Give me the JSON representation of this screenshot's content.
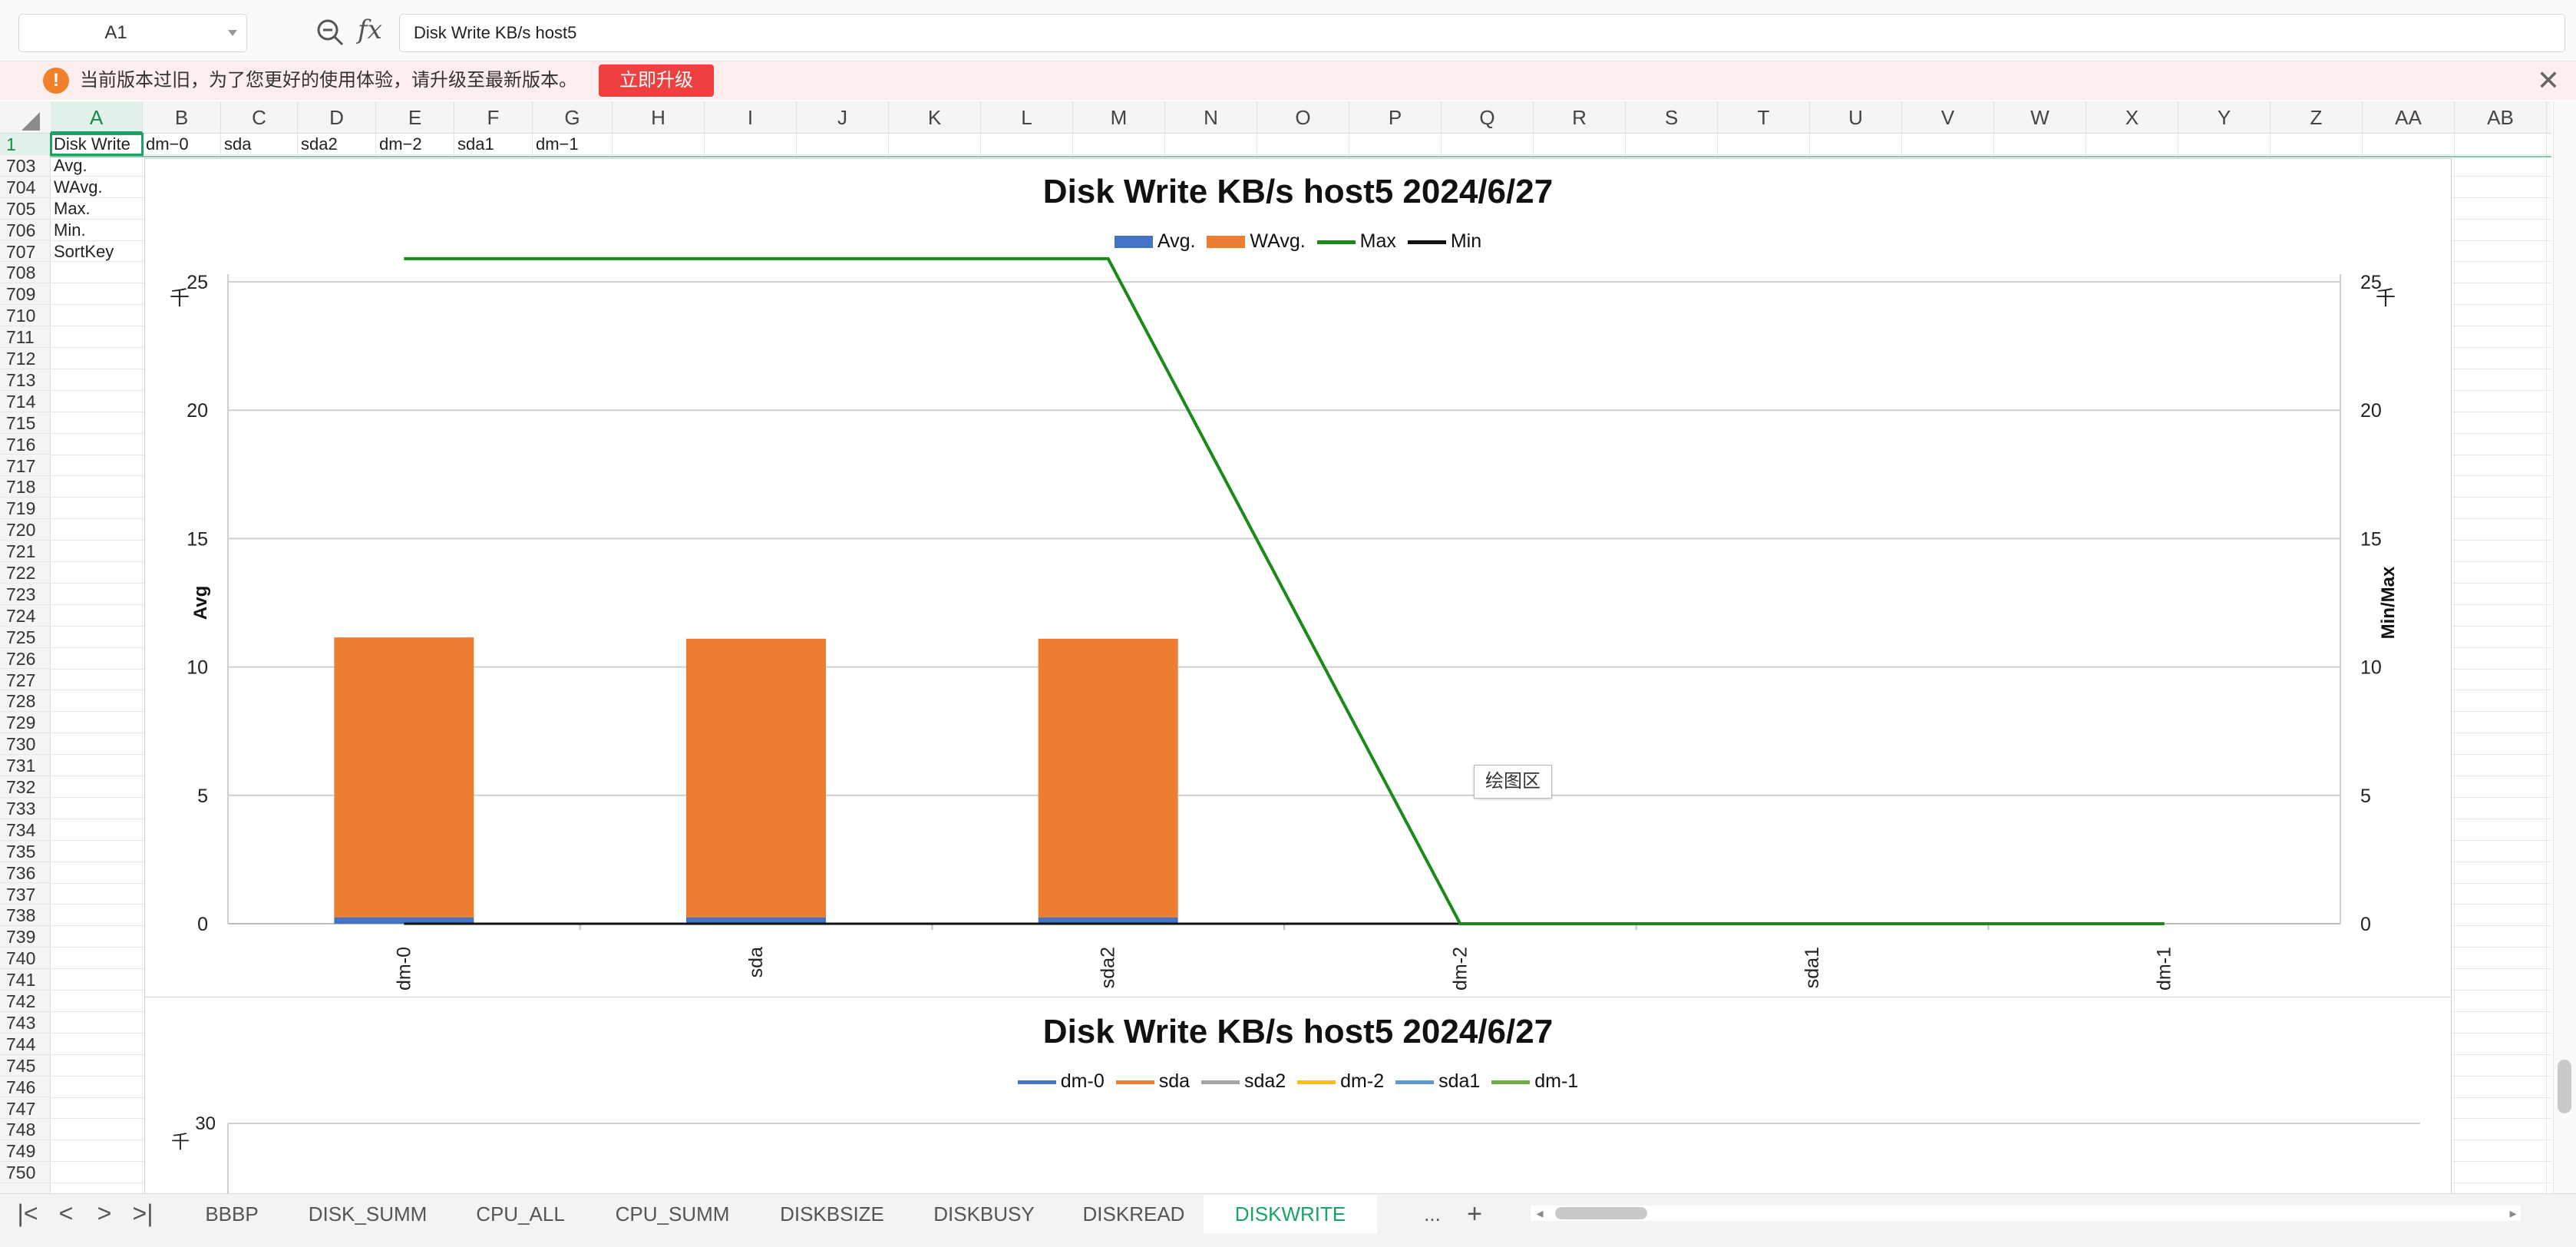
{
  "formula_bar": {
    "cell_ref": "A1",
    "fx": "fx",
    "content": "Disk Write KB/s host5"
  },
  "notice": {
    "icon": "!",
    "text": "当前版本过旧，为了您更好的使用体验，请升级至最新版本。",
    "button": "立即升级",
    "close": "✕"
  },
  "columns": [
    "A",
    "B",
    "C",
    "D",
    "E",
    "F",
    "G",
    "H",
    "I",
    "J",
    "K",
    "L",
    "M",
    "N",
    "O",
    "P",
    "Q",
    "R",
    "S",
    "T",
    "U",
    "V",
    "W",
    "X",
    "Y",
    "Z",
    "AA",
    "AB"
  ],
  "rows": [
    "1",
    "703",
    "704",
    "705",
    "706",
    "707",
    "708",
    "709",
    "710",
    "711",
    "712",
    "713",
    "714",
    "715",
    "716",
    "717",
    "718",
    "719",
    "720",
    "721",
    "722",
    "723",
    "724",
    "725",
    "726",
    "727",
    "728",
    "729",
    "730",
    "731",
    "732",
    "733",
    "734",
    "735",
    "736",
    "737",
    "738",
    "739",
    "740",
    "741",
    "742",
    "743",
    "744",
    "745",
    "746",
    "747",
    "748",
    "749",
    "750"
  ],
  "row1_cells": [
    "Disk Write",
    "dm−0",
    "sda",
    "sda2",
    "dm−2",
    "sda1",
    "dm−1"
  ],
  "col_a_cells": [
    "Avg.",
    "WAvg.",
    "Max.",
    "Min.",
    "SortKey"
  ],
  "chart1": {
    "title": "Disk Write KB/s host5  2024/6/27",
    "legend": [
      "Avg.",
      "WAvg.",
      "Max",
      "Min"
    ],
    "ylabel_left": "Avg",
    "ylabel_right": "Min/Max",
    "unit_left": "千",
    "unit_right": "千",
    "tooltip": "绘图区"
  },
  "chart2": {
    "title": "Disk Write KB/s host5  2024/6/27",
    "legend": [
      "dm-0",
      "sda",
      "sda2",
      "dm-2",
      "sda1",
      "dm-1"
    ],
    "unit": "千",
    "ytick_top": "30"
  },
  "chart_data": [
    {
      "type": "bar",
      "title": "Disk Write KB/s host5  2024/6/27",
      "categories": [
        "dm-0",
        "sda",
        "sda2",
        "dm-2",
        "sda1",
        "dm-1"
      ],
      "ylabel": "Avg",
      "y2label": "Min/Max",
      "ylim": [
        0,
        25
      ],
      "y2lim": [
        0,
        25
      ],
      "yticks": [
        "0",
        "5",
        "10",
        "15",
        "20",
        "25"
      ],
      "grid": true,
      "legend": "top",
      "series": [
        {
          "name": "Avg.",
          "kind": "bar",
          "color": "#4472c4",
          "values": [
            0.25,
            0.25,
            0.25,
            0,
            0,
            0
          ]
        },
        {
          "name": "WAvg.",
          "kind": "bar",
          "color": "#ed7d31",
          "values": [
            10.9,
            10.85,
            10.85,
            0,
            0,
            0
          ]
        },
        {
          "name": "Max",
          "kind": "line",
          "axis": "right",
          "color": "#1a8a1a",
          "values": [
            25.9,
            25.9,
            25.9,
            0,
            0,
            0
          ]
        },
        {
          "name": "Min",
          "kind": "line",
          "axis": "right",
          "color": "#111111",
          "values": [
            0,
            0,
            0,
            0,
            0,
            0
          ]
        }
      ]
    },
    {
      "type": "line",
      "title": "Disk Write KB/s host5  2024/6/27",
      "yticks": [
        "30"
      ],
      "legend": "top",
      "series": [
        {
          "name": "dm-0",
          "color": "#4472c4",
          "values": []
        },
        {
          "name": "sda",
          "color": "#ed7d31",
          "values": []
        },
        {
          "name": "sda2",
          "color": "#a5a5a5",
          "values": []
        },
        {
          "name": "dm-2",
          "color": "#ffc000",
          "values": []
        },
        {
          "name": "sda1",
          "color": "#5b9bd5",
          "values": []
        },
        {
          "name": "dm-1",
          "color": "#70ad47",
          "values": []
        }
      ]
    }
  ],
  "sheet_tabs": [
    "BBBP",
    "DISK_SUMM",
    "CPU_ALL",
    "CPU_SUMM",
    "DISKBSIZE",
    "DISKBUSY",
    "DISKREAD",
    "DISKWRITE"
  ],
  "active_tab": "DISKWRITE",
  "tab_more": "...",
  "tab_add": "+",
  "nav_icons": [
    "first-sheet-icon",
    "prev-sheet-icon",
    "next-sheet-icon",
    "last-sheet-icon"
  ]
}
